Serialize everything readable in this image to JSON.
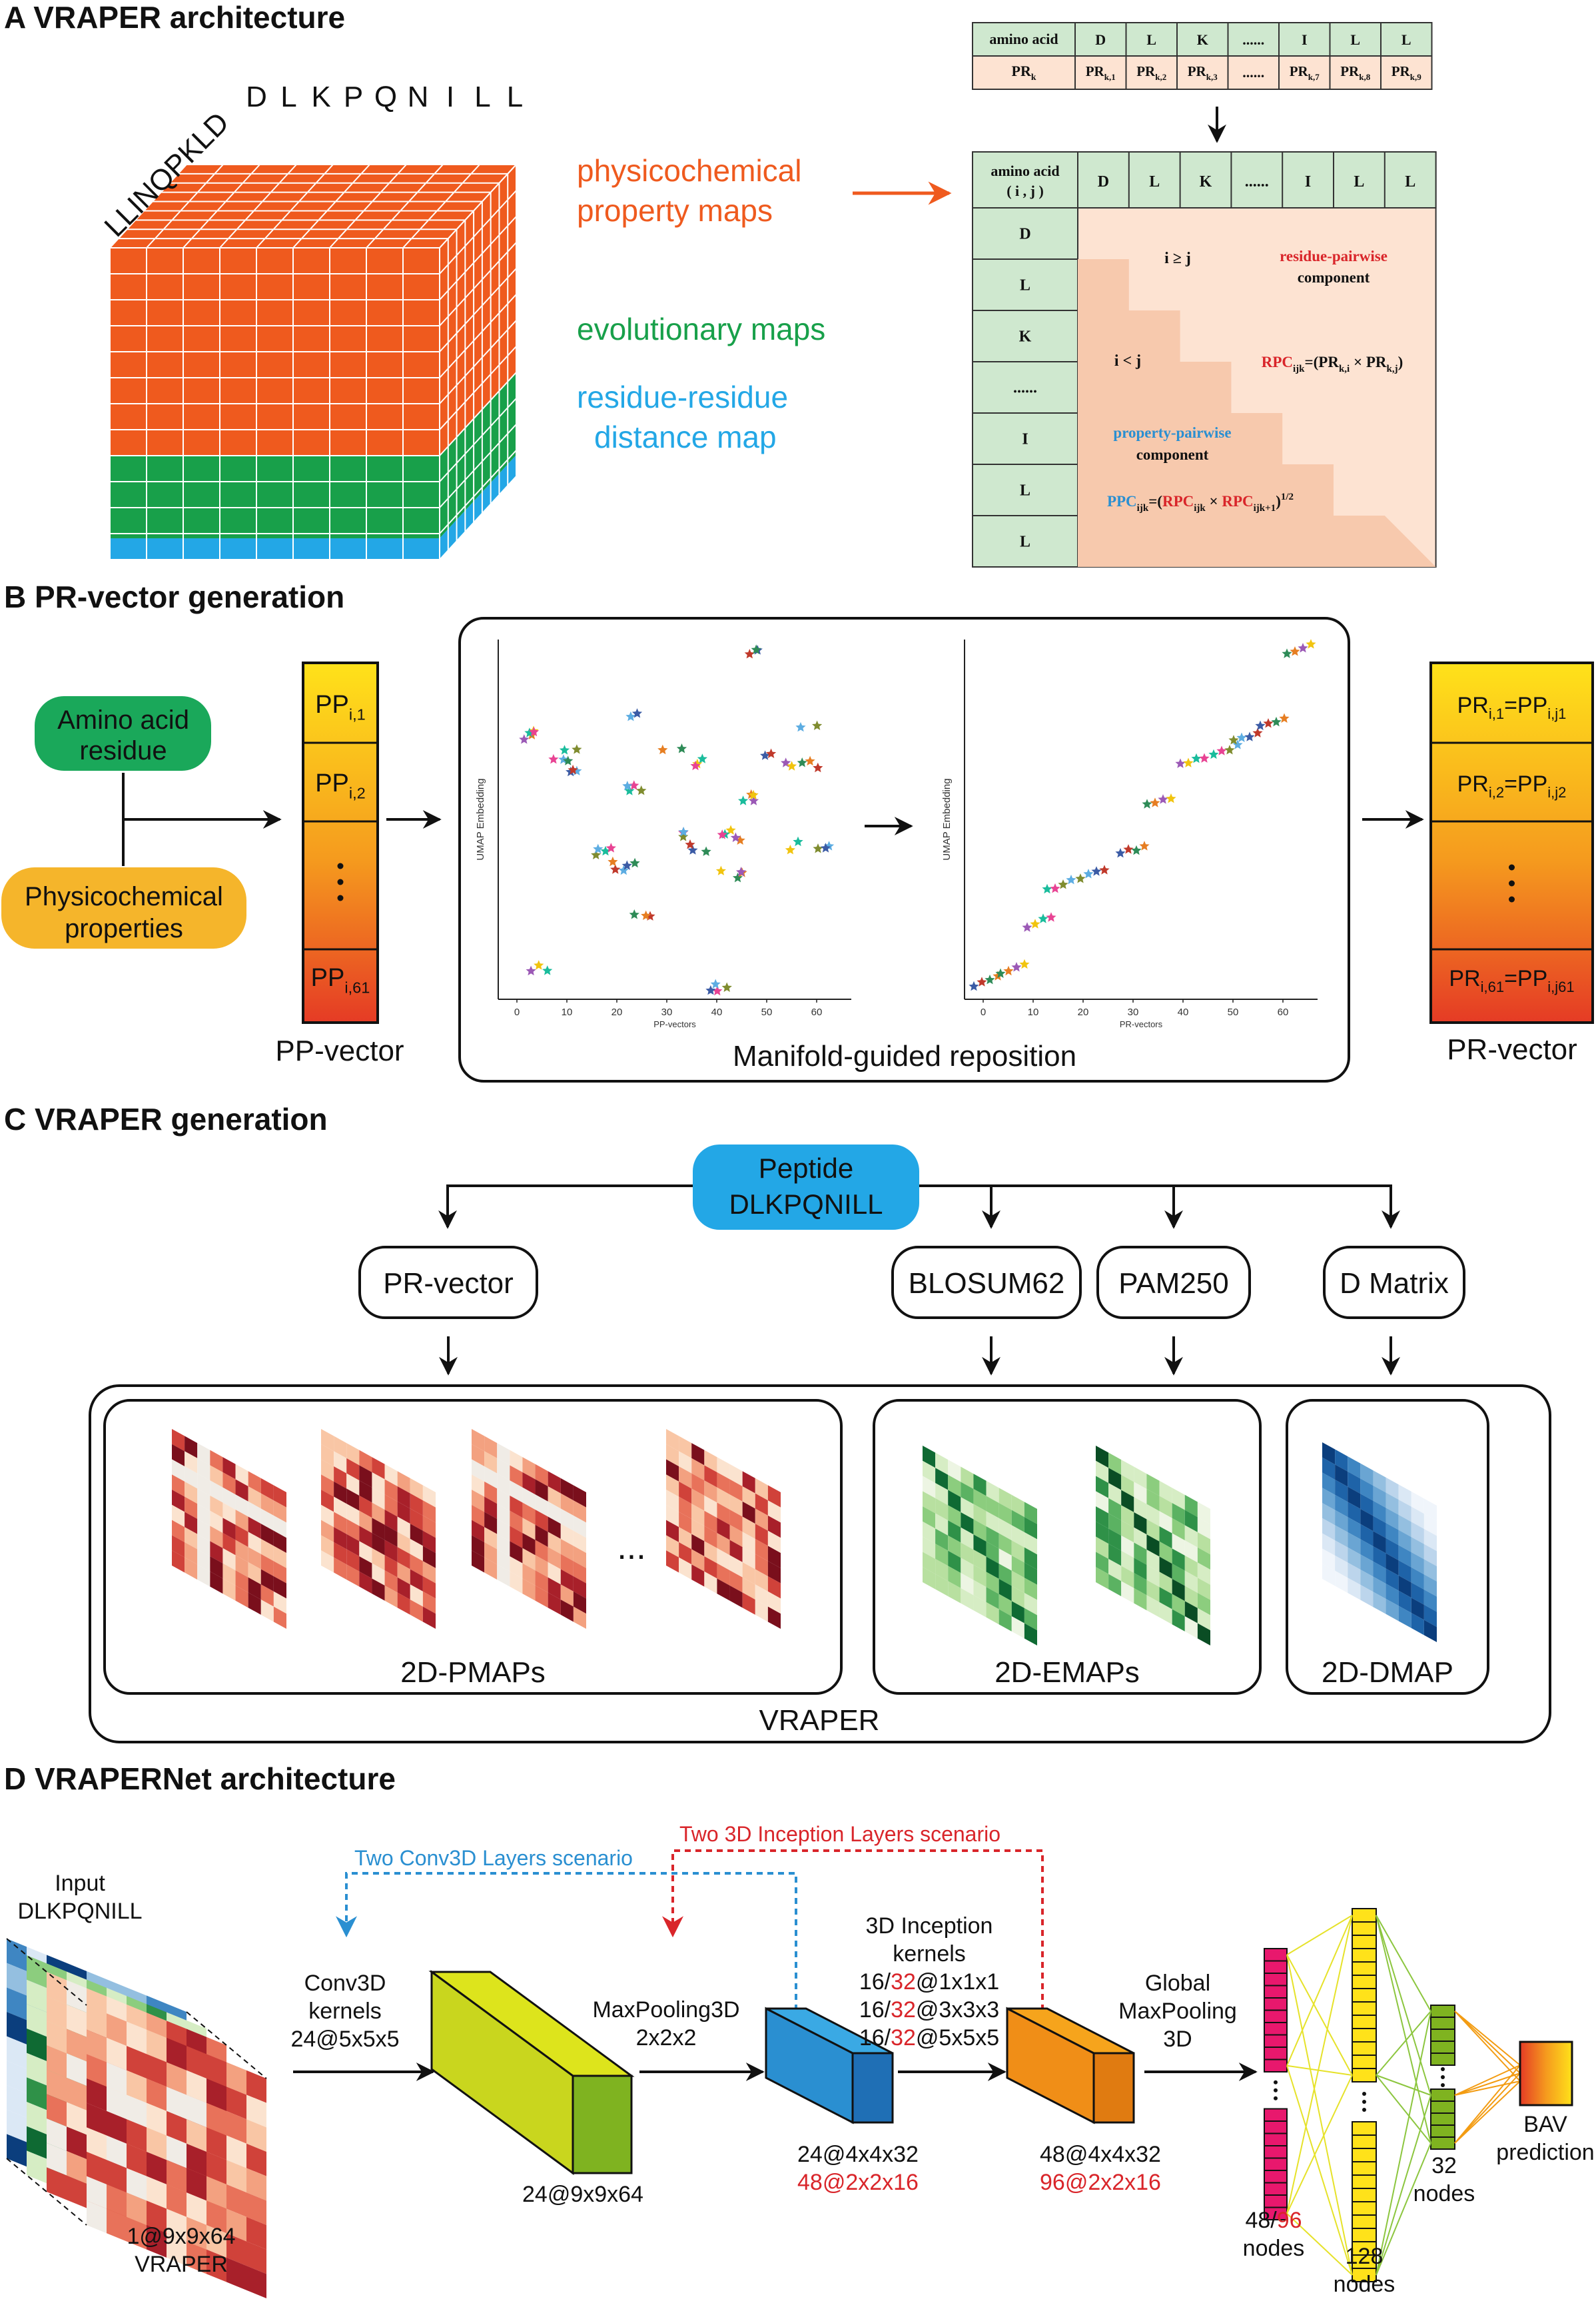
{
  "colors": {
    "orange": "#ef5a1e",
    "green": "#18a04a",
    "blue": "#23a7e6",
    "peach": "#fde3d2",
    "tablegreen": "#cfe8cf",
    "red": "#d9252a",
    "azure": "#2a8fd1"
  },
  "panelA": {
    "header": "A  VRAPER architecture",
    "top_residues": [
      "D",
      "L",
      "K",
      "P",
      "Q",
      "N",
      "I",
      "L",
      "L"
    ],
    "side_residues": "LLINQPKLD",
    "legend": {
      "physico_line1": "physicochemical",
      "physico_line2": "property maps",
      "evolutionary": "evolutionary maps",
      "distance_line1": "residue-residue",
      "distance_line2": "distance map"
    },
    "small_table": {
      "row1_head": "amino acid",
      "row1": [
        "D",
        "L",
        "K",
        "......",
        "I",
        "L",
        "L"
      ],
      "row2_head": "PR",
      "row2_head_sub": "k",
      "row2_base": "PR",
      "row2_subs": [
        "k,1",
        "k,2",
        "k,3",
        "",
        "k,7",
        "k,8",
        "k,9"
      ],
      "row2_dots": "......"
    },
    "big_table": {
      "head_line1": "amino acid",
      "head_line2": "( i , j )",
      "cols": [
        "D",
        "L",
        "K",
        "......",
        "I",
        "L",
        "L"
      ],
      "rows": [
        "D",
        "L",
        "K",
        "......",
        "I",
        "L",
        "L"
      ],
      "i_ge_j": "i ≥ j",
      "i_lt_j": "i < j",
      "residue_pairwise": "residue-pairwise",
      "component": "component",
      "property_pairwise": "property-pairwise",
      "rpc_formula": "RPC",
      "rpc_sub": "ijk",
      "rpc_rhs": "=(PR",
      "rpc_rhs_sub1": "k,i",
      "rpc_times": " × PR",
      "rpc_rhs_sub2": "k,j",
      "rpc_close": ")",
      "ppc": "PPC",
      "ppc_sub": "ijk",
      "ppc_eq": "=(",
      "ppc_rpc1": "RPC",
      "ppc_rpc1_sub": "ijk",
      "ppc_times": " × ",
      "ppc_rpc2": "RPC",
      "ppc_rpc2_sub": "ijk+1",
      "ppc_close": ")",
      "ppc_pow": "1/2"
    }
  },
  "panelB": {
    "header": "B  PR-vector generation",
    "aa_line1": "Amino acid",
    "aa_line2": "residue",
    "pc_line1": "Physicochemical",
    "pc_line2": "properties",
    "pp_base": "PP",
    "pp_subs": [
      "i,1",
      "i,2",
      "i,61"
    ],
    "pp_caption": "PP-vector",
    "pr_items": [
      {
        "base": "PR",
        "sub1": "i,1",
        "mid": "=PP",
        "sub2": "i,j1"
      },
      {
        "base": "PR",
        "sub1": "i,2",
        "mid": "=PP",
        "sub2": "i,j2"
      },
      {
        "base": "PR",
        "sub1": "i,61",
        "mid": "=PP",
        "sub2": "i,j61"
      }
    ],
    "pr_caption": "PR-vector",
    "manifold_caption": "Manifold-guided  reposition",
    "plot_ylabel": "UMAP Embedding",
    "plot_xlabel": "PP-vectors",
    "plot2_xlabel": "PR-vectors",
    "xticks": [
      "0",
      "10",
      "20",
      "30",
      "40",
      "50",
      "60"
    ]
  },
  "panelC": {
    "header": "C  VRAPER generation",
    "peptide_line1": "Peptide",
    "peptide_line2": "DLKPQNILL",
    "prvector": "PR-vector",
    "blosum": "BLOSUM62",
    "pam": "PAM250",
    "dmatrix": "D Matrix",
    "pmaps": "2D-PMAPs",
    "emaps": "2D-EMAPs",
    "dmap": "2D-DMAP",
    "vraper": "VRAPER",
    "ellipsis": "..."
  },
  "panelD": {
    "header": "D  VRAPERNet architecture",
    "input_line1": "Input",
    "input_line2": "DLKPQNILL",
    "input_dim": "1@9x9x64",
    "input_name": "VRAPER",
    "conv_scenario": "Two Conv3D Layers scenario",
    "incep_scenario": "Two 3D Inception Layers scenario",
    "conv_line1": "Conv3D",
    "conv_line2": "kernels",
    "conv_line3": "24@5x5x5",
    "conv_out": "24@9x9x64",
    "pool_line1": "MaxPooling3D",
    "pool_line2": "2x2x2",
    "pool_out1": "24@4x4x32",
    "pool_out2": "48@2x2x16",
    "incep_line1": "3D Inception",
    "incep_line2": "kernels",
    "incep_k": [
      {
        "a": "16/",
        "b": "32",
        "c": "@1x1x1"
      },
      {
        "a": "16/",
        "b": "32",
        "c": "@3x3x3"
      },
      {
        "a": "16/",
        "b": "32",
        "c": "@5x5x5"
      }
    ],
    "incep_out1": "48@4x4x32",
    "incep_out2": "96@2x2x16",
    "gmp_line1": "Global",
    "gmp_line2": "MaxPooling",
    "gmp_line3": "3D",
    "n1_a": "48/",
    "n1_b": "96",
    "n1_c": "nodes",
    "n2_a": "128",
    "n2_b": "nodes",
    "n3_a": "32",
    "n3_b": "nodes",
    "bav_line1": "BAV",
    "bav_line2": "prediction"
  }
}
